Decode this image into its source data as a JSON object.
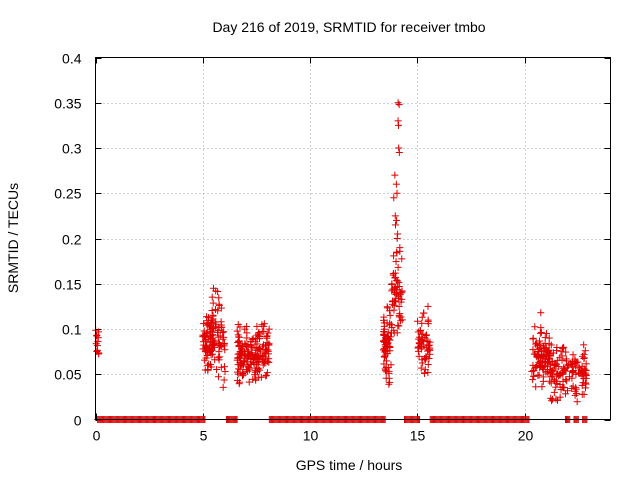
{
  "chart_data": {
    "type": "scatter",
    "title": "Day 216 of 2019, SRMTID for receiver tmbo",
    "xlabel": "GPS time / hours",
    "ylabel": "SRMTID / TECUs",
    "xlim": [
      0,
      24
    ],
    "ylim": [
      0,
      0.4
    ],
    "xticks": [
      0,
      5,
      10,
      15,
      20
    ],
    "xtick_labels": [
      "0",
      "5",
      "10",
      "15",
      "20"
    ],
    "yticks": [
      0,
      0.05,
      0.1,
      0.15,
      0.2,
      0.25,
      0.3,
      0.35,
      0.4
    ],
    "ytick_labels": [
      "0",
      "0.05",
      "0.1",
      "0.15",
      "0.2",
      "0.25",
      "0.3",
      "0.35",
      "0.4"
    ],
    "grid": true,
    "marker": "+",
    "color": "#e00000",
    "zero_segments": [
      [
        0.1,
        5.1
      ],
      [
        6.1,
        6.6
      ],
      [
        8.1,
        13.5
      ],
      [
        14.4,
        15.1
      ],
      [
        15.6,
        20.2
      ],
      [
        21.9,
        22.1
      ],
      [
        22.3,
        22.5
      ],
      [
        22.7,
        22.9
      ]
    ],
    "clusters": [
      {
        "x": [
          0.0,
          0.15
        ],
        "y": [
          0.065,
          0.11
        ],
        "n": 12
      },
      {
        "x": [
          5.0,
          5.5
        ],
        "y": [
          0.05,
          0.12
        ],
        "n": 70
      },
      {
        "x": [
          5.4,
          6.1
        ],
        "y": [
          0.03,
          0.148
        ],
        "n": 60
      },
      {
        "x": [
          6.6,
          7.3
        ],
        "y": [
          0.035,
          0.11
        ],
        "n": 90
      },
      {
        "x": [
          7.3,
          8.1
        ],
        "y": [
          0.04,
          0.115
        ],
        "n": 90
      },
      {
        "x": [
          13.4,
          13.8
        ],
        "y": [
          0.035,
          0.13
        ],
        "n": 70
      },
      {
        "x": [
          13.8,
          14.3
        ],
        "y": [
          0.08,
          0.2
        ],
        "n": 60
      },
      {
        "x": [
          15.0,
          15.6
        ],
        "y": [
          0.04,
          0.13
        ],
        "n": 60
      },
      {
        "x": [
          20.3,
          21.2
        ],
        "y": [
          0.03,
          0.105
        ],
        "n": 100
      },
      {
        "x": [
          21.2,
          22.9
        ],
        "y": [
          0.015,
          0.085
        ],
        "n": 130
      }
    ],
    "points": [
      {
        "x": 14.1,
        "y": 0.35
      },
      {
        "x": 14.15,
        "y": 0.348
      },
      {
        "x": 14.1,
        "y": 0.33
      },
      {
        "x": 14.12,
        "y": 0.325
      },
      {
        "x": 14.13,
        "y": 0.3
      },
      {
        "x": 14.16,
        "y": 0.295
      },
      {
        "x": 13.95,
        "y": 0.27
      },
      {
        "x": 14.02,
        "y": 0.26
      },
      {
        "x": 13.9,
        "y": 0.245
      },
      {
        "x": 14.05,
        "y": 0.25
      },
      {
        "x": 13.97,
        "y": 0.225
      },
      {
        "x": 14.03,
        "y": 0.22
      },
      {
        "x": 13.98,
        "y": 0.215
      },
      {
        "x": 14.08,
        "y": 0.205
      },
      {
        "x": 14.06,
        "y": 0.2
      },
      {
        "x": 20.75,
        "y": 0.118
      },
      {
        "x": 5.5,
        "y": 0.145
      },
      {
        "x": 5.6,
        "y": 0.142
      }
    ]
  }
}
